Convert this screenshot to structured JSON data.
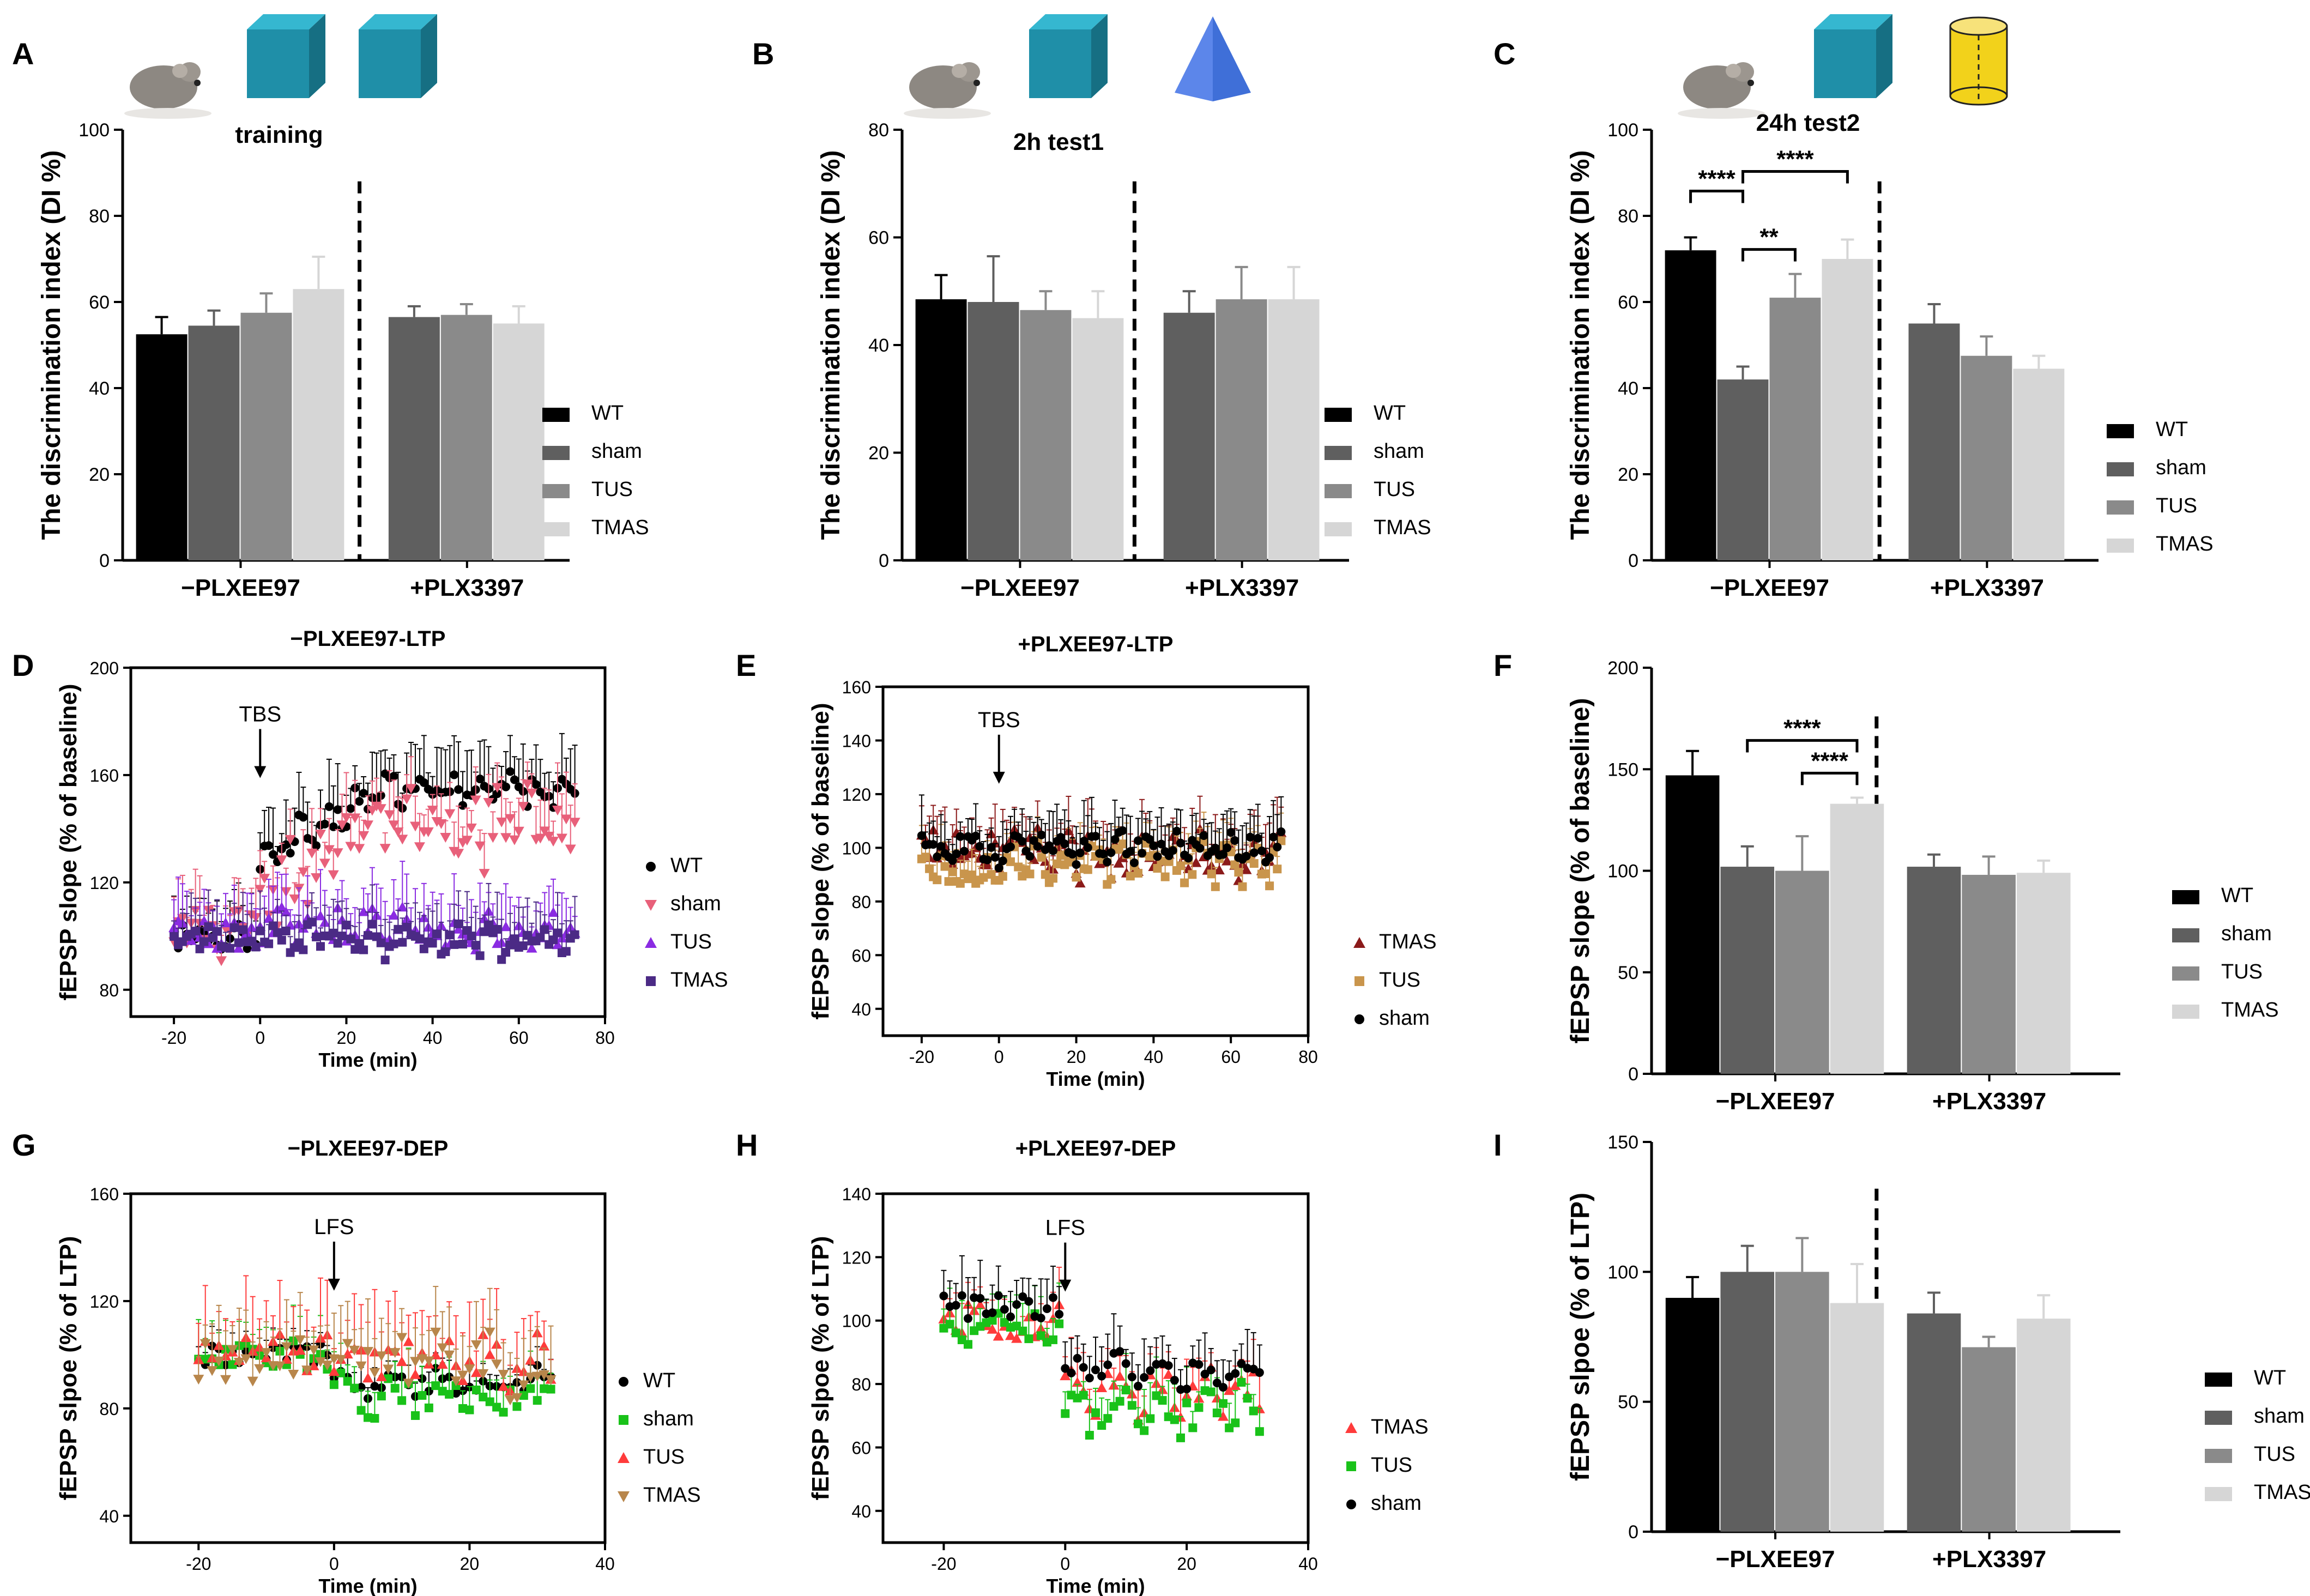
{
  "figure": {
    "legend4": [
      "WT",
      "sham",
      "TUS",
      "TMAS"
    ],
    "colors": {
      "WT": "#000000",
      "sham": "#5f5f5f",
      "TUS": "#8a8a8a",
      "TMAS": "#d6d6d6",
      "lineWT": "#000000",
      "lineSham": "#e8607a",
      "lineTUS": "#8a2be2",
      "lineTMAS": "#4b2a85",
      "brownTUS": "#c9954c",
      "darkRed": "#8b1a1a",
      "green": "#19c219",
      "red": "#ff3b3b",
      "tan": "#b8864b",
      "cube": "#1f8fa8",
      "pyramid": "#3f6fd8",
      "cylinder": "#f2d21b"
    }
  },
  "chart_data": [
    {
      "panel": "A",
      "type": "bar",
      "title": "training",
      "ylabel": "The discrimination index (DI %)",
      "ylim": [
        0,
        100
      ],
      "yticks": [
        0,
        20,
        40,
        60,
        80,
        100
      ],
      "groups": [
        {
          "label": "−PLXEE97",
          "series": [
            "WT",
            "sham",
            "TUS",
            "TMAS"
          ],
          "values": [
            52.5,
            54.5,
            57.5,
            63
          ],
          "errors": [
            4,
            3.5,
            4.5,
            7.5
          ]
        },
        {
          "label": "+PLX3397",
          "series": [
            "sham",
            "TUS",
            "TMAS"
          ],
          "values": [
            56.5,
            57,
            55
          ],
          "errors": [
            2.5,
            2.5,
            4
          ]
        }
      ],
      "legend": [
        "WT",
        "sham",
        "TUS",
        "TMAS"
      ],
      "icons": [
        "mouse",
        "cube",
        "cube"
      ]
    },
    {
      "panel": "B",
      "type": "bar",
      "title": "2h test1",
      "ylabel": "The discrimination index (DI %)",
      "ylim": [
        0,
        80
      ],
      "yticks": [
        0,
        20,
        40,
        60,
        80
      ],
      "groups": [
        {
          "label": "−PLXEE97",
          "series": [
            "WT",
            "sham",
            "TUS",
            "TMAS"
          ],
          "values": [
            48.5,
            48,
            46.5,
            45
          ],
          "errors": [
            4.5,
            8.5,
            3.5,
            5
          ]
        },
        {
          "label": "+PLX3397",
          "series": [
            "sham",
            "TUS",
            "TMAS"
          ],
          "values": [
            46,
            48.5,
            48.5
          ],
          "errors": [
            4,
            6,
            6
          ]
        }
      ],
      "legend": [
        "WT",
        "sham",
        "TUS",
        "TMAS"
      ],
      "icons": [
        "mouse",
        "cube",
        "pyramid"
      ]
    },
    {
      "panel": "C",
      "type": "bar",
      "title": "24h test2",
      "ylabel": "The discrimination index (DI %)",
      "ylim": [
        0,
        100
      ],
      "yticks": [
        0,
        20,
        40,
        60,
        80,
        100
      ],
      "groups": [
        {
          "label": "−PLXEE97",
          "series": [
            "WT",
            "sham",
            "TUS",
            "TMAS"
          ],
          "values": [
            72,
            42,
            61,
            70
          ],
          "errors": [
            3,
            3,
            5.5,
            4.5
          ]
        },
        {
          "label": "+PLX3397",
          "series": [
            "sham",
            "TUS",
            "TMAS"
          ],
          "values": [
            55,
            47.5,
            44.5
          ],
          "errors": [
            4.5,
            4.5,
            3
          ]
        }
      ],
      "significance": [
        {
          "from": 0,
          "to": 1,
          "text": "****"
        },
        {
          "from": 1,
          "to": 3,
          "text": "****"
        },
        {
          "from": 1,
          "to": 2,
          "text": "**"
        }
      ],
      "legend": [
        "WT",
        "sham",
        "TUS",
        "TMAS"
      ],
      "icons": [
        "mouse",
        "cube",
        "cylinder"
      ]
    },
    {
      "panel": "D",
      "type": "scatter",
      "title": "−PLXEE97-LTP",
      "xlabel": "Time (min)",
      "ylabel": "fEPSP slope (% of baseline)",
      "xlim": [
        -30,
        80
      ],
      "ylim": [
        70,
        200
      ],
      "xticks": [
        -20,
        0,
        20,
        40,
        60,
        80
      ],
      "yticks": [
        80,
        120,
        160,
        200
      ],
      "annotation": "TBS",
      "series": [
        {
          "name": "WT",
          "marker": "circle",
          "base": 100,
          "plateau": 155,
          "start": 130,
          "rise": 25,
          "noise": 5,
          "err": 14
        },
        {
          "name": "sham",
          "marker": "tri-down",
          "base": 100,
          "plateau": 140,
          "start": 115,
          "rise": 40,
          "noise": 12,
          "err": 14
        },
        {
          "name": "TUS",
          "marker": "tri-up",
          "base": 100,
          "plateau": 102,
          "start": 105,
          "rise": 10,
          "noise": 6,
          "err": 14
        },
        {
          "name": "TMAS",
          "marker": "square",
          "base": 100,
          "plateau": 98,
          "start": 100,
          "rise": 10,
          "noise": 5,
          "err": 12
        }
      ]
    },
    {
      "panel": "E",
      "type": "scatter",
      "title": "+PLXEE97-LTP",
      "xlabel": "Time (min)",
      "ylabel": "fEPSP slope (% of baseline)",
      "xlim": [
        -30,
        80
      ],
      "ylim": [
        30,
        160
      ],
      "xticks": [
        -20,
        0,
        20,
        40,
        60,
        80
      ],
      "yticks": [
        40,
        60,
        80,
        100,
        120,
        140,
        160
      ],
      "annotation": "TBS",
      "series": [
        {
          "name": "TMAS",
          "marker": "tri-up",
          "base": 100,
          "plateau": 96,
          "start": 100,
          "rise": 5,
          "noise": 7,
          "err": 12
        },
        {
          "name": "TUS",
          "marker": "square",
          "base": 92,
          "plateau": 94,
          "start": 96,
          "rise": 5,
          "noise": 6,
          "err": 10
        },
        {
          "name": "sham",
          "marker": "circle",
          "base": 100,
          "plateau": 100,
          "start": 100,
          "rise": 5,
          "noise": 5,
          "err": 12
        }
      ]
    },
    {
      "panel": "F",
      "type": "bar",
      "ylabel": "fEPSP slope (% of baseline)",
      "ylim": [
        0,
        200
      ],
      "yticks": [
        0,
        50,
        100,
        150,
        200
      ],
      "groups": [
        {
          "label": "−PLXEE97",
          "series": [
            "WT",
            "sham",
            "TUS",
            "TMAS"
          ],
          "values": [
            147,
            102,
            100,
            133
          ],
          "errors": [
            12,
            10,
            17,
            3
          ]
        },
        {
          "label": "+PLX3397",
          "series": [
            "sham",
            "TUS",
            "TMAS"
          ],
          "values": [
            102,
            98,
            99
          ],
          "errors": [
            6,
            9,
            6
          ]
        }
      ],
      "significance": [
        {
          "from": 1,
          "to": 3,
          "text": "****"
        },
        {
          "from": 2,
          "to": 3,
          "text": "****"
        }
      ],
      "legend": [
        "WT",
        "sham",
        "TUS",
        "TMAS"
      ]
    },
    {
      "panel": "G",
      "type": "scatter",
      "title": "−PLXEE97-DEP",
      "xlabel": "Time (min)",
      "ylabel": "fEPSP slpoe (% of LTP)",
      "xlim": [
        -30,
        40
      ],
      "ylim": [
        30,
        160
      ],
      "xticks": [
        -20,
        0,
        20,
        40
      ],
      "yticks": [
        40,
        80,
        120,
        160
      ],
      "annotation": "LFS",
      "series": [
        {
          "name": "WT",
          "marker": "circle",
          "base": 100,
          "plateau": 90,
          "start": 90,
          "rise": 0,
          "noise": 4,
          "err": 6
        },
        {
          "name": "sham",
          "marker": "square",
          "base": 100,
          "plateau": 85,
          "start": 85,
          "rise": 0,
          "noise": 6,
          "err": 12
        },
        {
          "name": "TUS",
          "marker": "tri-up",
          "base": 100,
          "plateau": 98,
          "start": 100,
          "rise": 0,
          "noise": 8,
          "err": 18
        },
        {
          "name": "TMAS",
          "marker": "tri-down",
          "base": 98,
          "plateau": 95,
          "start": 100,
          "rise": 0,
          "noise": 8,
          "err": 16
        }
      ]
    },
    {
      "panel": "H",
      "type": "scatter",
      "title": "+PLXEE97-DEP",
      "xlabel": "Time (min)",
      "ylabel": "fEPSP slpoe (% of LTP)",
      "xlim": [
        -30,
        40
      ],
      "ylim": [
        30,
        140
      ],
      "xticks": [
        -20,
        0,
        20,
        40
      ],
      "yticks": [
        40,
        60,
        80,
        100,
        120,
        140
      ],
      "annotation": "LFS",
      "series": [
        {
          "name": "TMAS",
          "marker": "tri-up",
          "base": 100,
          "plateau": 78,
          "start": 78,
          "rise": 0,
          "noise": 6,
          "err": 10
        },
        {
          "name": "TUS",
          "marker": "square",
          "base": 98,
          "plateau": 72,
          "start": 70,
          "rise": 0,
          "noise": 6,
          "err": 10
        },
        {
          "name": "sham",
          "marker": "circle",
          "base": 104,
          "plateau": 84,
          "start": 84,
          "rise": 0,
          "noise": 4,
          "err": 10
        }
      ]
    },
    {
      "panel": "I",
      "type": "bar",
      "ylabel": "fEPSP slpoe (% of LTP)",
      "ylim": [
        0,
        150
      ],
      "yticks": [
        0,
        50,
        100,
        150
      ],
      "groups": [
        {
          "label": "−PLXEE97",
          "series": [
            "WT",
            "sham",
            "TUS",
            "TMAS"
          ],
          "values": [
            90,
            100,
            100,
            88
          ],
          "errors": [
            8,
            10,
            13,
            15
          ]
        },
        {
          "label": "+PLX3397",
          "series": [
            "sham",
            "TUS",
            "TMAS"
          ],
          "values": [
            84,
            71,
            82
          ],
          "errors": [
            8,
            4,
            9
          ]
        }
      ],
      "legend": [
        "WT",
        "sham",
        "TUS",
        "TMAS"
      ]
    }
  ]
}
